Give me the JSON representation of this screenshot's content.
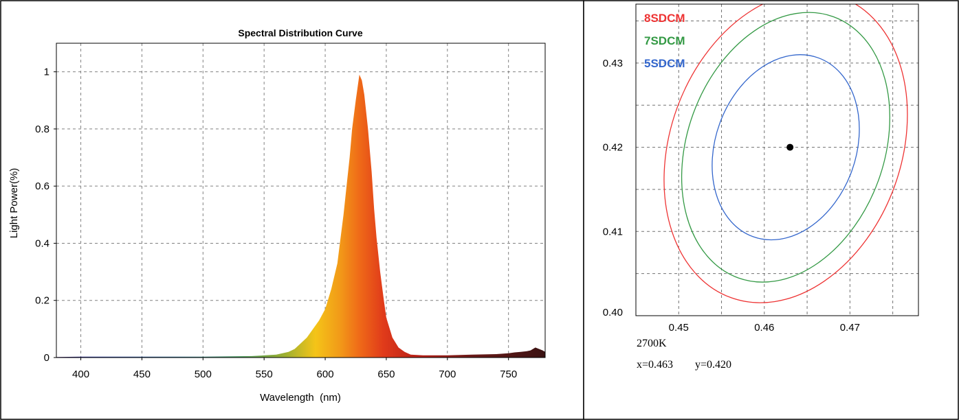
{
  "chart_data": [
    {
      "type": "area",
      "title": "Spectral Distribution Curve",
      "xlabel": "Wavelength  (nm)",
      "ylabel": "Light Power(%)",
      "xlim": [
        380,
        780
      ],
      "ylim": [
        0,
        1.1
      ],
      "x_ticks": [
        400,
        450,
        500,
        550,
        600,
        650,
        700,
        750
      ],
      "y_ticks": [
        0,
        0.2,
        0.4,
        0.6,
        0.8,
        1
      ],
      "y_tick_labels": [
        "0",
        "0.2",
        "0.4",
        "0.6",
        "0.8",
        "1"
      ],
      "grid": true,
      "x": [
        380,
        400,
        450,
        500,
        540,
        560,
        570,
        575,
        580,
        585,
        590,
        595,
        600,
        605,
        610,
        612,
        615,
        618,
        620,
        622,
        625,
        627,
        628,
        630,
        632,
        635,
        638,
        640,
        642,
        645,
        648,
        650,
        655,
        660,
        665,
        670,
        680,
        700,
        720,
        740,
        750,
        755,
        760,
        765,
        768,
        770,
        772,
        775,
        778,
        780
      ],
      "y": [
        0.002,
        0.003,
        0.003,
        0.003,
        0.005,
        0.01,
        0.02,
        0.03,
        0.05,
        0.07,
        0.1,
        0.13,
        0.17,
        0.24,
        0.33,
        0.4,
        0.5,
        0.62,
        0.7,
        0.8,
        0.9,
        0.96,
        0.99,
        0.97,
        0.92,
        0.8,
        0.65,
        0.52,
        0.42,
        0.3,
        0.2,
        0.14,
        0.07,
        0.035,
        0.02,
        0.01,
        0.008,
        0.008,
        0.01,
        0.012,
        0.015,
        0.018,
        0.02,
        0.022,
        0.025,
        0.03,
        0.035,
        0.03,
        0.025,
        0.02
      ]
    },
    {
      "type": "scatter",
      "xlim": [
        0.445,
        0.478
      ],
      "ylim": [
        0.4,
        0.437
      ],
      "x_ticks": [
        0.45,
        0.46,
        0.47
      ],
      "x_tick_labels": [
        "0.45",
        "0.46",
        "0.47"
      ],
      "y_ticks": [
        0.4,
        0.41,
        0.42,
        0.43
      ],
      "y_tick_labels": [
        "0.40",
        "0.41",
        "0.42",
        "0.43"
      ],
      "grid": true,
      "point": {
        "x": 0.463,
        "y": 0.42
      },
      "ellipses": [
        {
          "name": "8SDCM",
          "color": "#ee3333",
          "center": [
            0.4625,
            0.42
          ],
          "rx": 0.0135,
          "ry": 0.019,
          "tilt": 20
        },
        {
          "name": "7SDCM",
          "color": "#339944",
          "center": [
            0.4625,
            0.42
          ],
          "rx": 0.0115,
          "ry": 0.0165,
          "tilt": 20
        },
        {
          "name": "5SDCM",
          "color": "#3366cc",
          "center": [
            0.4625,
            0.42
          ],
          "rx": 0.0082,
          "ry": 0.0113,
          "tilt": 20
        }
      ],
      "cct_label": "2700K",
      "coord_x_label": "x=0.463",
      "coord_y_label": "y=0.420"
    }
  ]
}
